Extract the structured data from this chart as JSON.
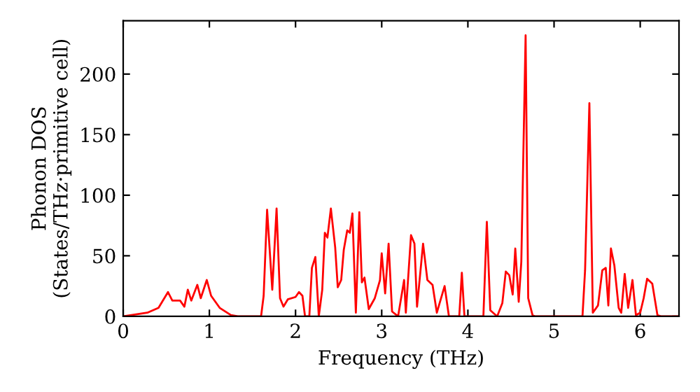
{
  "chart_data": {
    "type": "line",
    "xlabel": "Frequency (THz)",
    "ylabel": "Phonon DOS\n(States/THz·primitive cell)",
    "xlim": [
      0,
      6.45
    ],
    "ylim": [
      0,
      244
    ],
    "xticks": [
      0,
      1,
      2,
      3,
      4,
      5,
      6
    ],
    "yticks": [
      0,
      50,
      100,
      150,
      200
    ],
    "grid": false,
    "marker": "none",
    "line_style": "solid",
    "series": [
      {
        "color": "#ff0000",
        "x": [
          0,
          0.28,
          0.41,
          0.52,
          0.57,
          0.66,
          0.71,
          0.75,
          0.79,
          0.86,
          0.9,
          0.97,
          1.02,
          1.12,
          1.25,
          1.33,
          1.6,
          1.63,
          1.67,
          1.73,
          1.78,
          1.82,
          1.86,
          1.91,
          2.0,
          2.04,
          2.08,
          2.11,
          2.16,
          2.19,
          2.23,
          2.27,
          2.31,
          2.34,
          2.37,
          2.41,
          2.46,
          2.49,
          2.53,
          2.56,
          2.6,
          2.63,
          2.66,
          2.7,
          2.74,
          2.77,
          2.8,
          2.85,
          2.92,
          2.98,
          3.0,
          3.04,
          3.08,
          3.12,
          3.19,
          3.26,
          3.28,
          3.34,
          3.38,
          3.41,
          3.48,
          3.53,
          3.59,
          3.64,
          3.73,
          3.78,
          3.9,
          3.93,
          3.96,
          4.18,
          4.22,
          4.26,
          4.34,
          4.4,
          4.44,
          4.48,
          4.52,
          4.55,
          4.59,
          4.62,
          4.67,
          4.7,
          4.75,
          4.78,
          5.33,
          5.36,
          5.41,
          5.45,
          5.51,
          5.56,
          5.6,
          5.63,
          5.66,
          5.7,
          5.75,
          5.78,
          5.82,
          5.86,
          5.91,
          5.95,
          6.0,
          6.04,
          6.08,
          6.14,
          6.2,
          6.24,
          6.45
        ],
        "values": [
          0,
          3,
          7,
          20,
          13,
          13,
          8,
          22,
          13,
          26,
          15,
          30,
          17,
          7,
          1,
          0,
          0,
          17,
          88,
          22,
          89,
          15,
          8,
          14,
          16,
          20,
          17,
          0,
          0,
          40,
          49,
          0,
          22,
          69,
          65,
          89,
          57,
          24,
          30,
          55,
          71,
          69,
          85,
          3,
          86,
          28,
          32,
          6,
          15,
          30,
          52,
          19,
          60,
          4,
          0,
          30,
          3,
          67,
          60,
          8,
          60,
          30,
          26,
          3,
          25,
          0,
          0,
          36,
          0,
          0,
          78,
          5,
          0,
          11,
          37,
          34,
          18,
          56,
          12,
          45,
          232,
          15,
          1,
          0,
          0,
          38,
          176,
          3,
          9,
          38,
          40,
          9,
          56,
          42,
          7,
          3,
          35,
          7,
          30,
          1,
          3,
          15,
          31,
          27,
          1,
          0,
          0
        ]
      }
    ]
  }
}
